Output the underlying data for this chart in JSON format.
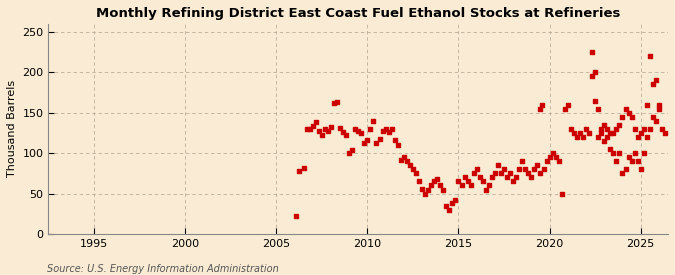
{
  "title": "Monthly Refining District East Coast Fuel Ethanol Stocks at Refineries",
  "ylabel": "Thousand Barrels",
  "source_text": "Source: U.S. Energy Information Administration",
  "background_color": "#faecd4",
  "marker_color": "#cc0000",
  "xlim": [
    1992.5,
    2026.5
  ],
  "ylim": [
    0,
    260
  ],
  "yticks": [
    0,
    50,
    100,
    150,
    200,
    250
  ],
  "xticks": [
    1995,
    2000,
    2005,
    2010,
    2015,
    2020,
    2025
  ],
  "data_points": [
    [
      2006.08,
      22
    ],
    [
      2006.25,
      78
    ],
    [
      2006.5,
      82
    ],
    [
      2006.67,
      130
    ],
    [
      2006.83,
      130
    ],
    [
      2007.0,
      133
    ],
    [
      2007.17,
      138
    ],
    [
      2007.33,
      127
    ],
    [
      2007.5,
      122
    ],
    [
      2007.67,
      130
    ],
    [
      2007.83,
      128
    ],
    [
      2008.0,
      132
    ],
    [
      2008.17,
      162
    ],
    [
      2008.33,
      163
    ],
    [
      2008.5,
      131
    ],
    [
      2008.67,
      126
    ],
    [
      2008.83,
      122
    ],
    [
      2009.0,
      100
    ],
    [
      2009.17,
      104
    ],
    [
      2009.33,
      130
    ],
    [
      2009.5,
      128
    ],
    [
      2009.67,
      125
    ],
    [
      2009.83,
      112
    ],
    [
      2010.0,
      116
    ],
    [
      2010.17,
      130
    ],
    [
      2010.33,
      140
    ],
    [
      2010.5,
      112
    ],
    [
      2010.67,
      118
    ],
    [
      2010.83,
      128
    ],
    [
      2011.0,
      130
    ],
    [
      2011.17,
      126
    ],
    [
      2011.33,
      130
    ],
    [
      2011.5,
      116
    ],
    [
      2011.67,
      110
    ],
    [
      2011.83,
      92
    ],
    [
      2012.0,
      95
    ],
    [
      2012.17,
      90
    ],
    [
      2012.33,
      85
    ],
    [
      2012.5,
      80
    ],
    [
      2012.67,
      75
    ],
    [
      2012.83,
      66
    ],
    [
      2013.0,
      56
    ],
    [
      2013.17,
      50
    ],
    [
      2013.33,
      55
    ],
    [
      2013.5,
      60
    ],
    [
      2013.67,
      65
    ],
    [
      2013.83,
      68
    ],
    [
      2014.0,
      60
    ],
    [
      2014.17,
      55
    ],
    [
      2014.33,
      35
    ],
    [
      2014.5,
      30
    ],
    [
      2014.67,
      38
    ],
    [
      2014.83,
      42
    ],
    [
      2015.0,
      65
    ],
    [
      2015.17,
      60
    ],
    [
      2015.33,
      70
    ],
    [
      2015.5,
      65
    ],
    [
      2015.67,
      60
    ],
    [
      2015.83,
      75
    ],
    [
      2016.0,
      80
    ],
    [
      2016.17,
      70
    ],
    [
      2016.33,
      65
    ],
    [
      2016.5,
      55
    ],
    [
      2016.67,
      60
    ],
    [
      2016.83,
      70
    ],
    [
      2017.0,
      75
    ],
    [
      2017.17,
      85
    ],
    [
      2017.33,
      75
    ],
    [
      2017.5,
      80
    ],
    [
      2017.67,
      70
    ],
    [
      2017.83,
      75
    ],
    [
      2018.0,
      65
    ],
    [
      2018.17,
      70
    ],
    [
      2018.33,
      80
    ],
    [
      2018.5,
      90
    ],
    [
      2018.67,
      80
    ],
    [
      2018.83,
      75
    ],
    [
      2019.0,
      70
    ],
    [
      2019.17,
      80
    ],
    [
      2019.33,
      85
    ],
    [
      2019.5,
      75
    ],
    [
      2019.67,
      80
    ],
    [
      2019.83,
      90
    ],
    [
      2020.0,
      95
    ],
    [
      2020.17,
      100
    ],
    [
      2020.33,
      95
    ],
    [
      2020.5,
      90
    ],
    [
      2020.67,
      50
    ],
    [
      2020.83,
      155
    ],
    [
      2021.0,
      160
    ],
    [
      2021.17,
      130
    ],
    [
      2021.33,
      125
    ],
    [
      2021.5,
      120
    ],
    [
      2021.67,
      125
    ],
    [
      2021.83,
      120
    ],
    [
      2022.0,
      130
    ],
    [
      2022.17,
      125
    ],
    [
      2022.33,
      195
    ],
    [
      2022.5,
      165
    ],
    [
      2022.67,
      120
    ],
    [
      2022.83,
      125
    ],
    [
      2023.0,
      115
    ],
    [
      2023.17,
      130
    ],
    [
      2023.33,
      105
    ],
    [
      2023.5,
      100
    ],
    [
      2023.67,
      90
    ],
    [
      2023.83,
      100
    ],
    [
      2024.0,
      75
    ],
    [
      2024.17,
      80
    ],
    [
      2024.33,
      95
    ],
    [
      2024.5,
      90
    ],
    [
      2024.67,
      100
    ],
    [
      2024.83,
      90
    ],
    [
      2025.0,
      80
    ],
    [
      2025.17,
      100
    ],
    [
      2025.33,
      120
    ],
    [
      2025.5,
      130
    ],
    [
      2025.67,
      145
    ],
    [
      2025.83,
      140
    ],
    [
      2026.0,
      155
    ],
    [
      2026.17,
      130
    ],
    [
      2026.33,
      125
    ],
    [
      2019.5,
      155
    ],
    [
      2019.6,
      160
    ],
    [
      2022.33,
      225
    ],
    [
      2022.5,
      200
    ],
    [
      2022.67,
      155
    ],
    [
      2022.83,
      130
    ],
    [
      2023.0,
      135
    ],
    [
      2023.17,
      120
    ],
    [
      2023.33,
      125
    ],
    [
      2023.5,
      125
    ],
    [
      2023.67,
      130
    ],
    [
      2023.83,
      135
    ],
    [
      2024.0,
      145
    ],
    [
      2024.17,
      155
    ],
    [
      2024.33,
      150
    ],
    [
      2024.5,
      145
    ],
    [
      2024.67,
      130
    ],
    [
      2024.83,
      120
    ],
    [
      2025.0,
      125
    ],
    [
      2025.17,
      130
    ],
    [
      2025.33,
      160
    ],
    [
      2025.5,
      220
    ],
    [
      2025.67,
      185
    ],
    [
      2025.83,
      190
    ],
    [
      2026.0,
      160
    ]
  ]
}
